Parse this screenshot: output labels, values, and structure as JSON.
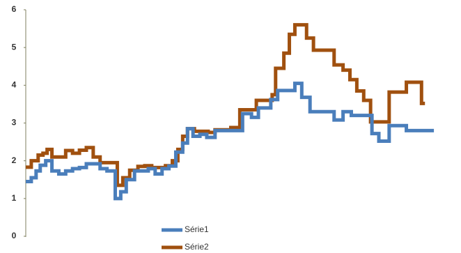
{
  "chart_data": {
    "type": "line",
    "step": true,
    "ylim": [
      0,
      6
    ],
    "yticks": [
      0,
      1,
      2,
      3,
      4,
      5,
      6
    ],
    "xlim": [
      0,
      600
    ],
    "series": [
      {
        "name": "Série2",
        "color": "#a0500f",
        "x": [
          0,
          8,
          18,
          25,
          31,
          38,
          48,
          58,
          68,
          78,
          88,
          98,
          108,
          118,
          128,
          133,
          141,
          151,
          163,
          173,
          183,
          193,
          203,
          213,
          221,
          228,
          235,
          245,
          255,
          265,
          275,
          285,
          298,
          311,
          323,
          335,
          348,
          358,
          363,
          375,
          383,
          391,
          401,
          408,
          418,
          433,
          448,
          461,
          471,
          481,
          491,
          501,
          513,
          528,
          543,
          553,
          568,
          575,
          580
        ],
        "values": [
          1.83,
          2.0,
          2.15,
          2.2,
          2.3,
          2.1,
          2.1,
          2.27,
          2.2,
          2.28,
          2.35,
          2.1,
          1.95,
          1.95,
          1.95,
          1.35,
          1.55,
          1.75,
          1.85,
          1.87,
          1.82,
          1.82,
          1.87,
          2.0,
          2.3,
          2.65,
          2.85,
          2.78,
          2.78,
          2.75,
          2.82,
          2.82,
          2.88,
          3.35,
          3.35,
          3.6,
          3.6,
          3.75,
          4.45,
          4.85,
          5.35,
          5.6,
          5.6,
          5.25,
          4.93,
          4.93,
          4.54,
          4.4,
          4.15,
          3.85,
          3.6,
          3.03,
          3.03,
          3.82,
          3.82,
          4.08,
          4.08,
          3.52,
          3.52
        ]
      },
      {
        "name": "Série1",
        "color": "#4a7ebb",
        "x": [
          0,
          8,
          15,
          21,
          29,
          38,
          48,
          58,
          68,
          78,
          88,
          98,
          108,
          118,
          126,
          130,
          138,
          146,
          158,
          168,
          178,
          188,
          198,
          208,
          218,
          228,
          235,
          243,
          253,
          263,
          275,
          288,
          303,
          315,
          328,
          338,
          348,
          356,
          366,
          378,
          391,
          401,
          413,
          433,
          448,
          461,
          473,
          493,
          503,
          513,
          528,
          543,
          553,
          593
        ],
        "values": [
          1.45,
          1.55,
          1.73,
          1.88,
          2.0,
          1.73,
          1.65,
          1.73,
          1.79,
          1.82,
          1.92,
          1.92,
          1.79,
          1.73,
          1.73,
          1.0,
          1.18,
          1.5,
          1.73,
          1.73,
          1.79,
          1.65,
          1.79,
          1.86,
          2.23,
          2.47,
          2.85,
          2.65,
          2.7,
          2.62,
          2.8,
          2.8,
          2.8,
          3.25,
          3.15,
          3.4,
          3.4,
          3.62,
          3.86,
          3.86,
          4.05,
          3.68,
          3.3,
          3.3,
          3.08,
          3.3,
          3.2,
          3.2,
          2.72,
          2.52,
          2.93,
          2.93,
          2.8,
          2.8
        ]
      }
    ]
  }
}
